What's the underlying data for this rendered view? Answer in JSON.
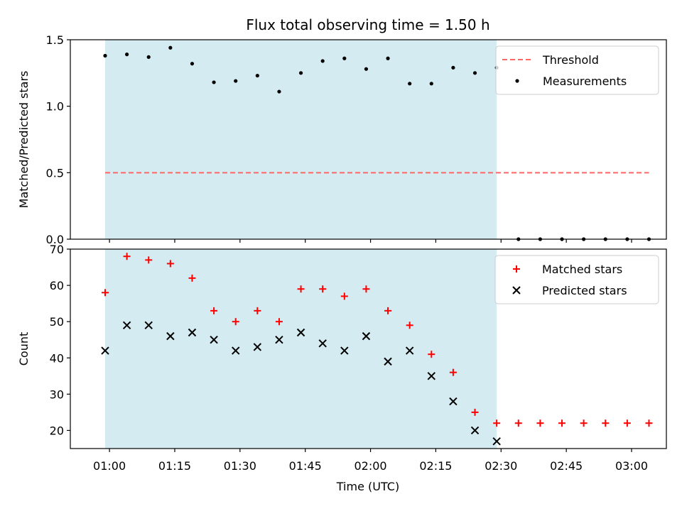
{
  "figure": {
    "title": "Flux total observing time = 1.50 h",
    "xlabel": "Time (UTC)",
    "background": "#ffffff",
    "shade_color": "#add8e6"
  },
  "chart_data": [
    {
      "type": "scatter",
      "ylabel": "Matched/Predicted stars",
      "ylim": [
        0.0,
        1.5
      ],
      "yticks": [
        "0.0",
        "0.5",
        "1.0",
        "1.5"
      ],
      "xlim": [
        "00:51",
        "03:08"
      ],
      "shaded_x_range": [
        "00:59",
        "02:29"
      ],
      "legend_position": "upper right",
      "threshold": {
        "name": "Threshold",
        "y": 0.5,
        "x_range": [
          "00:59",
          "03:04"
        ],
        "color": "#ff6666",
        "style": "dashed"
      },
      "series": [
        {
          "name": "Measurements",
          "marker": "dot",
          "color": "#000000",
          "x": [
            "00:59",
            "01:04",
            "01:09",
            "01:14",
            "01:19",
            "01:24",
            "01:29",
            "01:34",
            "01:39",
            "01:44",
            "01:49",
            "01:54",
            "01:59",
            "02:04",
            "02:09",
            "02:14",
            "02:19",
            "02:24",
            "02:29",
            "02:34",
            "02:39",
            "02:44",
            "02:49",
            "02:54",
            "02:59",
            "03:04"
          ],
          "y": [
            1.38,
            1.39,
            1.37,
            1.44,
            1.32,
            1.18,
            1.19,
            1.23,
            1.11,
            1.25,
            1.34,
            1.36,
            1.28,
            1.36,
            1.17,
            1.17,
            1.29,
            1.25,
            1.29,
            0.0,
            0.0,
            0.0,
            0.0,
            0.0,
            0.0,
            0.0
          ]
        }
      ]
    },
    {
      "type": "scatter",
      "ylabel": "Count",
      "ylim": [
        15,
        70
      ],
      "yticks": [
        "20",
        "30",
        "40",
        "50",
        "60",
        "70"
      ],
      "xlim": [
        "00:51",
        "03:08"
      ],
      "xticks": [
        "01:00",
        "01:15",
        "01:30",
        "01:45",
        "02:00",
        "02:15",
        "02:30",
        "02:45",
        "03:00"
      ],
      "shaded_x_range": [
        "00:59",
        "02:29"
      ],
      "legend_position": "upper right",
      "series": [
        {
          "name": "Matched stars",
          "marker": "plus",
          "color": "#ff0000",
          "x": [
            "00:59",
            "01:04",
            "01:09",
            "01:14",
            "01:19",
            "01:24",
            "01:29",
            "01:34",
            "01:39",
            "01:44",
            "01:49",
            "01:54",
            "01:59",
            "02:04",
            "02:09",
            "02:14",
            "02:19",
            "02:24",
            "02:29",
            "02:34",
            "02:39",
            "02:44",
            "02:49",
            "02:54",
            "02:59",
            "03:04"
          ],
          "y": [
            58,
            68,
            67,
            66,
            62,
            53,
            50,
            53,
            50,
            59,
            59,
            57,
            59,
            53,
            49,
            41,
            36,
            25,
            22,
            22,
            22,
            22,
            22,
            22,
            22,
            22
          ]
        },
        {
          "name": "Predicted stars",
          "marker": "x",
          "color": "#000000",
          "x": [
            "00:59",
            "01:04",
            "01:09",
            "01:14",
            "01:19",
            "01:24",
            "01:29",
            "01:34",
            "01:39",
            "01:44",
            "01:49",
            "01:54",
            "01:59",
            "02:04",
            "02:09",
            "02:14",
            "02:19",
            "02:24",
            "02:29"
          ],
          "y": [
            42,
            49,
            49,
            46,
            47,
            45,
            42,
            43,
            45,
            47,
            44,
            42,
            46,
            39,
            42,
            35,
            28,
            20,
            17
          ]
        }
      ]
    }
  ]
}
